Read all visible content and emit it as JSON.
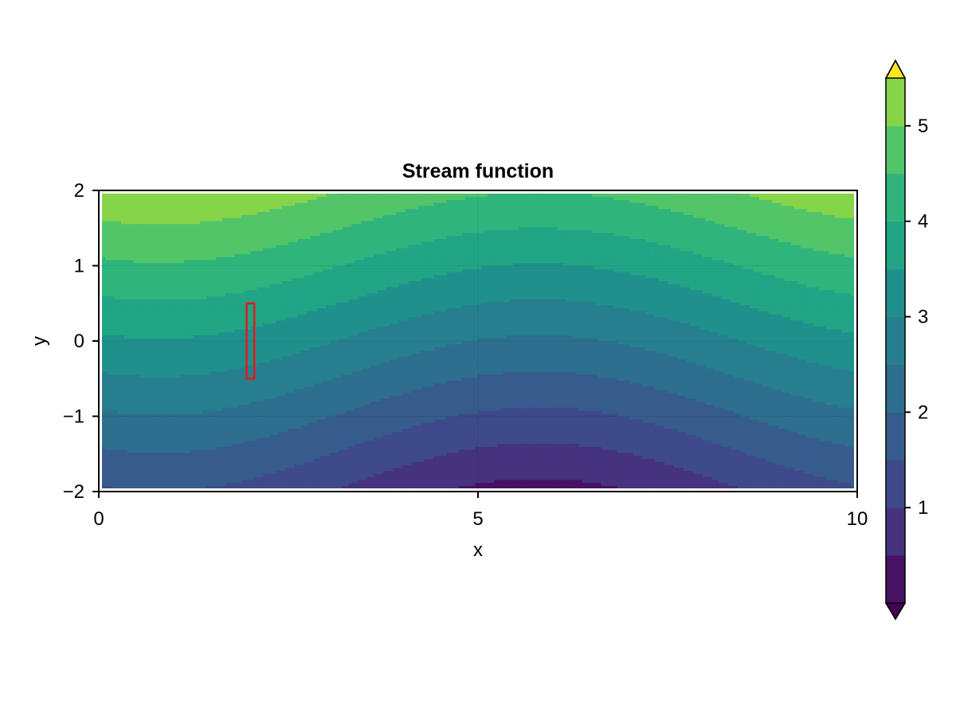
{
  "chart_data": {
    "type": "contourf",
    "title": "Stream function",
    "xlabel": "x",
    "ylabel": "y",
    "xlim": [
      0,
      10
    ],
    "ylim": [
      -2,
      2
    ],
    "x_ticks": [
      0,
      5,
      10
    ],
    "x_tick_labels": [
      "0",
      "5",
      "10"
    ],
    "y_ticks": [
      -2,
      -1,
      0,
      1,
      2
    ],
    "y_tick_labels": [
      "−2",
      "−1",
      "0",
      "1",
      "2"
    ],
    "grid": true,
    "field": {
      "description_formula": "psi(x,y) = y + 2.5 - 0.6*cos(2*pi*(x - 5.8)/10)*exp(-((y-0)^2)/8)*1.2",
      "x_range": [
        0,
        10
      ],
      "y_range": [
        -2,
        2
      ]
    },
    "levels": [
      0.0,
      0.5,
      1.0,
      1.5,
      2.0,
      2.5,
      3.0,
      3.5,
      4.0,
      4.5,
      5.0,
      5.5
    ],
    "colormap": "viridis",
    "extend": "both",
    "colorbar": {
      "ticks": [
        1,
        2,
        3,
        4,
        5
      ],
      "tick_labels": [
        "1",
        "2",
        "3",
        "4",
        "5"
      ],
      "range": [
        0.0,
        5.5
      ]
    },
    "band_colors": [
      "#471164",
      "#46337e",
      "#3e4a89",
      "#365c8d",
      "#2e6e8e",
      "#277f8e",
      "#20908d",
      "#21a585",
      "#2fb47c",
      "#52c569",
      "#86d549",
      "#c3e022"
    ],
    "extend_low_color": "#440154",
    "extend_high_color": "#fde725",
    "annotation_rect": {
      "x": [
        1.95,
        2.05
      ],
      "y": [
        -0.5,
        0.5
      ],
      "color": "#e31a1c"
    }
  }
}
